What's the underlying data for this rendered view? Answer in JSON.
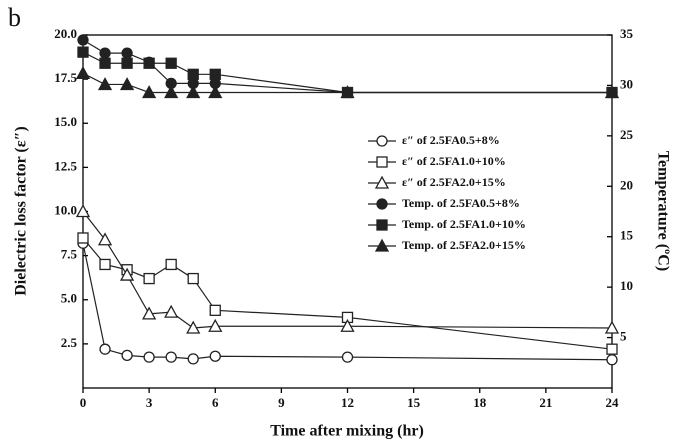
{
  "panel_label": "b",
  "chart_data": {
    "type": "line",
    "xlabel": "Time after mixing (hr)",
    "ylabel": "Dielectric loss factor (ε″)",
    "y2label": "Temperature (ºC)",
    "x": [
      0,
      1,
      2,
      3,
      4,
      5,
      6,
      12,
      24
    ],
    "xlim": [
      0,
      24
    ],
    "xticks": [
      0,
      3,
      6,
      9,
      12,
      15,
      18,
      21,
      24
    ],
    "ylim": [
      0,
      20
    ],
    "yticks": [
      2.5,
      {
        "value": 5,
        "label": "5.0"
      },
      7.5,
      {
        "value": 10,
        "label": "10.0"
      },
      12.5,
      {
        "value": 15,
        "label": "15.0"
      },
      17.5,
      {
        "value": 20,
        "label": "20.0"
      }
    ],
    "y2lim": [
      0,
      35
    ],
    "y2ticks": [
      5,
      10,
      15,
      20,
      25,
      30,
      35
    ],
    "series": [
      {
        "name": "ε″ of 2.5FA0.5+8%",
        "color": "#222222",
        "marker": "circle",
        "filled": false,
        "values": [
          8.2,
          2.2,
          1.85,
          1.75,
          1.75,
          1.65,
          1.8,
          1.75,
          1.6
        ]
      },
      {
        "name": "ε″ of 2.5FA1.0+10%",
        "color": "#222222",
        "marker": "square",
        "filled": false,
        "values": [
          8.5,
          7.0,
          6.7,
          6.2,
          7.0,
          6.2,
          4.4,
          4.0,
          2.2
        ]
      },
      {
        "name": "ε″ of 2.5FA2.0+15%",
        "color": "#222222",
        "marker": "triangle",
        "filled": false,
        "values": [
          10.0,
          8.4,
          6.4,
          4.2,
          4.3,
          3.4,
          3.5,
          3.5,
          3.4
        ]
      },
      {
        "name": "Temp. of 2.5FA0.5+8%",
        "color": "#222222",
        "marker": "circle",
        "filled": true,
        "axis": "y2",
        "values": [
          34.5,
          33.2,
          33.2,
          32.3,
          30.2,
          30.2,
          30.2,
          29.3,
          29.3
        ]
      },
      {
        "name": "Temp. of 2.5FA1.0+10%",
        "color": "#222222",
        "marker": "square",
        "filled": true,
        "axis": "y2",
        "values": [
          33.3,
          32.2,
          32.2,
          32.2,
          32.2,
          31.1,
          31.1,
          29.3,
          29.3
        ]
      },
      {
        "name": "Temp. of 2.5FA2.0+15%",
        "color": "#222222",
        "marker": "triangle",
        "filled": true,
        "axis": "y2",
        "values": [
          31.2,
          30.1,
          30.1,
          29.3,
          29.3,
          29.3,
          29.3,
          29.3,
          29.3
        ]
      }
    ]
  }
}
